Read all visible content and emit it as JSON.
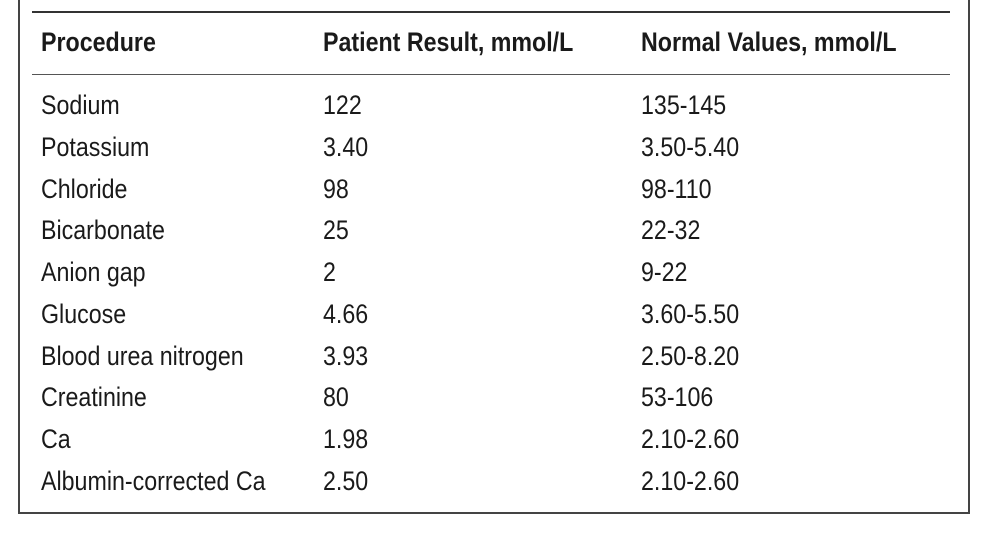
{
  "table": {
    "headers": {
      "procedure": "Procedure",
      "patient_result": "Patient Result, mmol/L",
      "normal_values": "Normal Values, mmol/L"
    },
    "rows": [
      {
        "procedure": "Sodium",
        "patient_result": "122",
        "normal_values": "135-145"
      },
      {
        "procedure": "Potassium",
        "patient_result": "3.40",
        "normal_values": "3.50-5.40"
      },
      {
        "procedure": "Chloride",
        "patient_result": "98",
        "normal_values": "98-110"
      },
      {
        "procedure": "Bicarbonate",
        "patient_result": "25",
        "normal_values": "22-32"
      },
      {
        "procedure": "Anion gap",
        "patient_result": "2",
        "normal_values": "9-22"
      },
      {
        "procedure": "Glucose",
        "patient_result": "4.66",
        "normal_values": "3.60-5.50"
      },
      {
        "procedure": "Blood urea nitrogen",
        "patient_result": "3.93",
        "normal_values": "2.50-8.20"
      },
      {
        "procedure": "Creatinine",
        "patient_result": "80",
        "normal_values": "53-106"
      },
      {
        "procedure": "Ca",
        "patient_result": "1.98",
        "normal_values": "2.10-2.60"
      },
      {
        "procedure": "Albumin-corrected Ca",
        "patient_result": "2.50",
        "normal_values": "2.10-2.60"
      }
    ]
  }
}
